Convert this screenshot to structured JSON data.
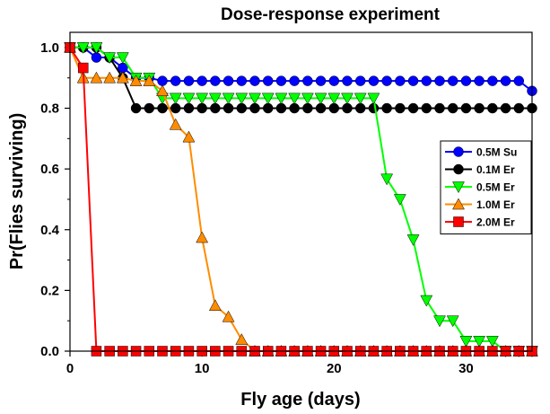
{
  "chart_data": {
    "type": "line",
    "title": "Dose-response experiment",
    "xlabel": "Fly age (days)",
    "ylabel": "Pr(Flies surviving)",
    "xlim": [
      0,
      35
    ],
    "ylim": [
      0,
      1.05
    ],
    "xticks": [
      0,
      10,
      20,
      30
    ],
    "yticks": [
      "0.0",
      "0.2",
      "0.4",
      "0.6",
      "0.8",
      "1.0"
    ],
    "legend_position": "right",
    "series": [
      {
        "name": "0.5M Su",
        "color": "#0000ff",
        "marker": "circle",
        "points": [
          [
            0,
            1.0
          ],
          [
            1,
            1.0
          ],
          [
            2,
            0.967
          ],
          [
            3,
            0.967
          ],
          [
            4,
            0.933
          ],
          [
            5,
            0.9
          ],
          [
            6,
            0.9
          ],
          [
            7,
            0.89
          ],
          [
            8,
            0.89
          ],
          [
            9,
            0.89
          ],
          [
            10,
            0.89
          ],
          [
            11,
            0.89
          ],
          [
            12,
            0.89
          ],
          [
            13,
            0.89
          ],
          [
            14,
            0.89
          ],
          [
            15,
            0.89
          ],
          [
            16,
            0.89
          ],
          [
            17,
            0.89
          ],
          [
            18,
            0.89
          ],
          [
            19,
            0.89
          ],
          [
            20,
            0.89
          ],
          [
            21,
            0.89
          ],
          [
            22,
            0.89
          ],
          [
            23,
            0.89
          ],
          [
            24,
            0.89
          ],
          [
            25,
            0.89
          ],
          [
            26,
            0.89
          ],
          [
            27,
            0.89
          ],
          [
            28,
            0.89
          ],
          [
            29,
            0.89
          ],
          [
            30,
            0.89
          ],
          [
            31,
            0.89
          ],
          [
            32,
            0.89
          ],
          [
            33,
            0.89
          ],
          [
            34,
            0.89
          ],
          [
            35,
            0.857
          ]
        ]
      },
      {
        "name": "0.1M Er",
        "color": "#000000",
        "marker": "circle",
        "points": [
          [
            0,
            1.0
          ],
          [
            1,
            1.0
          ],
          [
            2,
            1.0
          ],
          [
            3,
            0.967
          ],
          [
            4,
            0.9
          ],
          [
            5,
            0.8
          ],
          [
            6,
            0.8
          ],
          [
            7,
            0.8
          ],
          [
            8,
            0.8
          ],
          [
            9,
            0.8
          ],
          [
            10,
            0.8
          ],
          [
            11,
            0.8
          ],
          [
            12,
            0.8
          ],
          [
            13,
            0.8
          ],
          [
            14,
            0.8
          ],
          [
            15,
            0.8
          ],
          [
            16,
            0.8
          ],
          [
            17,
            0.8
          ],
          [
            18,
            0.8
          ],
          [
            19,
            0.8
          ],
          [
            20,
            0.8
          ],
          [
            21,
            0.8
          ],
          [
            22,
            0.8
          ],
          [
            23,
            0.8
          ],
          [
            24,
            0.8
          ],
          [
            25,
            0.8
          ],
          [
            26,
            0.8
          ],
          [
            27,
            0.8
          ],
          [
            28,
            0.8
          ],
          [
            29,
            0.8
          ],
          [
            30,
            0.8
          ],
          [
            31,
            0.8
          ],
          [
            32,
            0.8
          ],
          [
            33,
            0.8
          ],
          [
            34,
            0.8
          ],
          [
            35,
            0.8
          ]
        ]
      },
      {
        "name": "0.5M Er",
        "color": "#00ff00",
        "marker": "triangle-down",
        "points": [
          [
            0,
            1.0
          ],
          [
            1,
            1.0
          ],
          [
            2,
            1.0
          ],
          [
            3,
            0.967
          ],
          [
            4,
            0.967
          ],
          [
            5,
            0.9
          ],
          [
            6,
            0.9
          ],
          [
            7,
            0.833
          ],
          [
            8,
            0.833
          ],
          [
            9,
            0.833
          ],
          [
            10,
            0.833
          ],
          [
            11,
            0.833
          ],
          [
            12,
            0.833
          ],
          [
            13,
            0.833
          ],
          [
            14,
            0.833
          ],
          [
            15,
            0.833
          ],
          [
            16,
            0.833
          ],
          [
            17,
            0.833
          ],
          [
            18,
            0.833
          ],
          [
            19,
            0.833
          ],
          [
            20,
            0.833
          ],
          [
            21,
            0.833
          ],
          [
            22,
            0.833
          ],
          [
            23,
            0.833
          ],
          [
            24,
            0.567
          ],
          [
            25,
            0.5
          ],
          [
            26,
            0.367
          ],
          [
            27,
            0.167
          ],
          [
            28,
            0.1
          ],
          [
            29,
            0.1
          ],
          [
            30,
            0.033
          ],
          [
            31,
            0.033
          ],
          [
            32,
            0.033
          ],
          [
            33,
            0.0
          ],
          [
            34,
            0.0
          ],
          [
            35,
            0.0
          ]
        ]
      },
      {
        "name": "1.0M Er",
        "color": "#ff8c00",
        "marker": "triangle-up",
        "points": [
          [
            0,
            1.0
          ],
          [
            1,
            0.9
          ],
          [
            2,
            0.9
          ],
          [
            3,
            0.9
          ],
          [
            4,
            0.9
          ],
          [
            5,
            0.89
          ],
          [
            6,
            0.89
          ],
          [
            7,
            0.857
          ],
          [
            8,
            0.746
          ],
          [
            9,
            0.705
          ],
          [
            10,
            0.374
          ],
          [
            11,
            0.15
          ],
          [
            12,
            0.113
          ],
          [
            13,
            0.038
          ],
          [
            14,
            0.0
          ],
          [
            15,
            0.0
          ],
          [
            16,
            0.0
          ],
          [
            17,
            0.0
          ],
          [
            18,
            0.0
          ],
          [
            19,
            0.0
          ],
          [
            20,
            0.0
          ],
          [
            21,
            0.0
          ],
          [
            22,
            0.0
          ],
          [
            23,
            0.0
          ],
          [
            24,
            0.0
          ],
          [
            25,
            0.0
          ],
          [
            26,
            0.0
          ],
          [
            27,
            0.0
          ],
          [
            28,
            0.0
          ],
          [
            29,
            0.0
          ],
          [
            30,
            0.0
          ],
          [
            31,
            0.0
          ],
          [
            32,
            0.0
          ],
          [
            33,
            0.0
          ],
          [
            34,
            0.0
          ],
          [
            35,
            0.0
          ]
        ]
      },
      {
        "name": "2.0M Er",
        "color": "#ff0000",
        "marker": "square",
        "points": [
          [
            0,
            1.0
          ],
          [
            1,
            0.933
          ],
          [
            2,
            0.0
          ],
          [
            3,
            0.0
          ],
          [
            4,
            0.0
          ],
          [
            5,
            0.0
          ],
          [
            6,
            0.0
          ],
          [
            7,
            0.0
          ],
          [
            8,
            0.0
          ],
          [
            9,
            0.0
          ],
          [
            10,
            0.0
          ],
          [
            11,
            0.0
          ],
          [
            12,
            0.0
          ],
          [
            13,
            0.0
          ],
          [
            14,
            0.0
          ],
          [
            15,
            0.0
          ],
          [
            16,
            0.0
          ],
          [
            17,
            0.0
          ],
          [
            18,
            0.0
          ],
          [
            19,
            0.0
          ],
          [
            20,
            0.0
          ],
          [
            21,
            0.0
          ],
          [
            22,
            0.0
          ],
          [
            23,
            0.0
          ],
          [
            24,
            0.0
          ],
          [
            25,
            0.0
          ],
          [
            26,
            0.0
          ],
          [
            27,
            0.0
          ],
          [
            28,
            0.0
          ],
          [
            29,
            0.0
          ],
          [
            30,
            0.0
          ],
          [
            31,
            0.0
          ],
          [
            32,
            0.0
          ],
          [
            33,
            0.0
          ],
          [
            34,
            0.0
          ],
          [
            35,
            0.0
          ]
        ]
      }
    ]
  }
}
